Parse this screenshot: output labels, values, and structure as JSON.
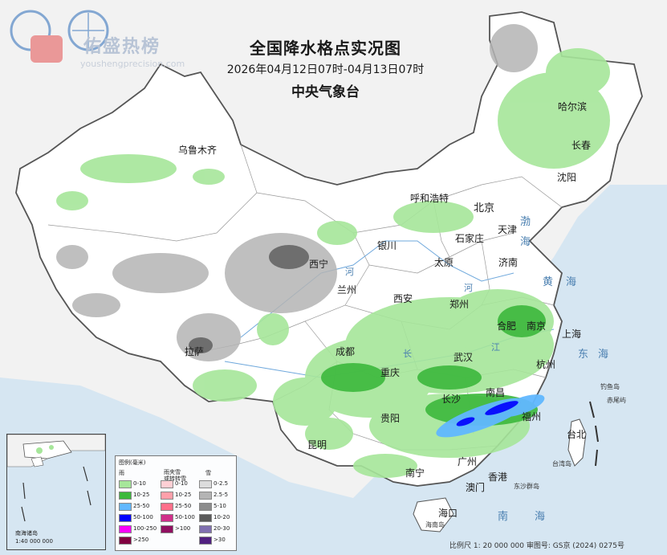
{
  "title": {
    "main": "全国降水格点实况图",
    "period": "2026年04月12日07时-04月13日07时",
    "agency": "中央气象台"
  },
  "watermark": {
    "name": "佑盛热榜",
    "url": "youshengprecision.com"
  },
  "cities": [
    {
      "id": "urumqi",
      "name": "乌鲁木齐"
    },
    {
      "id": "harbin",
      "name": "哈尔滨"
    },
    {
      "id": "changchun",
      "name": "长春"
    },
    {
      "id": "shenyang",
      "name": "沈阳"
    },
    {
      "id": "hohhot",
      "name": "呼和浩特"
    },
    {
      "id": "beijing",
      "name": "北京"
    },
    {
      "id": "tianjin",
      "name": "天津"
    },
    {
      "id": "shijiazhuang",
      "name": "石家庄"
    },
    {
      "id": "yinchuan",
      "name": "银川"
    },
    {
      "id": "taiyuan",
      "name": "太原"
    },
    {
      "id": "jinan",
      "name": "济南"
    },
    {
      "id": "xining",
      "name": "西宁"
    },
    {
      "id": "lanzhou",
      "name": "兰州"
    },
    {
      "id": "xian",
      "name": "西安"
    },
    {
      "id": "zhengzhou",
      "name": "郑州"
    },
    {
      "id": "hefei",
      "name": "合肥"
    },
    {
      "id": "nanjing",
      "name": "南京"
    },
    {
      "id": "shanghai",
      "name": "上海"
    },
    {
      "id": "lhasa",
      "name": "拉萨"
    },
    {
      "id": "chengdu",
      "name": "成都"
    },
    {
      "id": "wuhan",
      "name": "武汉"
    },
    {
      "id": "hangzhou",
      "name": "杭州"
    },
    {
      "id": "chongqing",
      "name": "重庆"
    },
    {
      "id": "changsha",
      "name": "长沙"
    },
    {
      "id": "nanchang",
      "name": "南昌"
    },
    {
      "id": "fuzhou",
      "name": "福州"
    },
    {
      "id": "guiyang",
      "name": "贵阳"
    },
    {
      "id": "taipei",
      "name": "台北"
    },
    {
      "id": "kunming",
      "name": "昆明"
    },
    {
      "id": "guangzhou",
      "name": "广州"
    },
    {
      "id": "nanning",
      "name": "南宁"
    },
    {
      "id": "hongkong",
      "name": "香港"
    },
    {
      "id": "macau",
      "name": "澳门"
    },
    {
      "id": "haikou",
      "name": "海口"
    }
  ],
  "seas": {
    "bohai": "渤",
    "bohai2": "海",
    "huanghai": "黄",
    "huanghai2": "海",
    "donghai": "东",
    "donghai2": "海",
    "nanhai": "南",
    "nanhai2": "海",
    "river_he": "河",
    "river_jiang": "江",
    "river_chang": "长"
  },
  "islands": {
    "diaoyu": "钓鱼岛",
    "chiwei": "赤尾屿",
    "taiwan": "台湾岛",
    "dongsha": "东沙群岛",
    "hainan": "海南岛"
  },
  "legend": {
    "title": "图例(毫米)",
    "rain_label": "雨",
    "mixed_label": "雨夹雪\n或转转雪",
    "snow_label": "雪",
    "rain": [
      "0-10",
      "10-25",
      "25-50",
      "50-100",
      "100-250",
      ">250"
    ],
    "mixed": [
      "0-10",
      "10-25",
      "25-50",
      "50-100",
      ">100"
    ],
    "snow": [
      "0-2.5",
      "2.5-5",
      "5-10",
      "10-20",
      "20-30",
      ">30"
    ],
    "rain_colors": [
      "#a6e69a",
      "#3cb83c",
      "#61b8ff",
      "#0000fe",
      "#fa00fa",
      "#800040"
    ],
    "mixed_colors": [
      "#ffcfd4",
      "#ff9faa",
      "#ff6f8a",
      "#d0308a",
      "#901060"
    ],
    "snow_colors": [
      "#dcdcdc",
      "#b4b4b4",
      "#8c8c8c",
      "#5a5a5a",
      "#8070b0",
      "#502080"
    ]
  },
  "inset": {
    "label": "南海诸岛",
    "scale": "1:40 000 000"
  },
  "footer": "比例尺 1: 20 000 000   审图号: GS京 (2024) 0275号"
}
